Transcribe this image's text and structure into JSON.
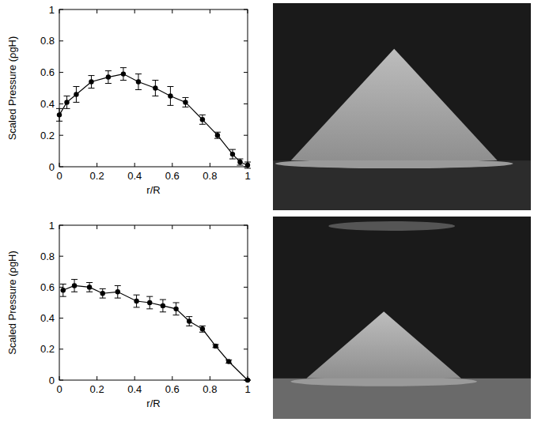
{
  "chart_data": [
    {
      "type": "line",
      "xlabel": "r/R",
      "ylabel": "Scaled Pressure (ρgH)",
      "x": [
        0,
        0.04,
        0.09,
        0.17,
        0.26,
        0.34,
        0.42,
        0.51,
        0.59,
        0.67,
        0.76,
        0.84,
        0.92,
        0.96,
        1.0
      ],
      "series": [
        {
          "color": "#000000",
          "marker": "circle",
          "values": [
            0.33,
            0.41,
            0.46,
            0.54,
            0.57,
            0.59,
            0.54,
            0.5,
            0.45,
            0.41,
            0.3,
            0.2,
            0.08,
            0.03,
            0.01
          ],
          "errors": [
            0.04,
            0.04,
            0.05,
            0.04,
            0.04,
            0.04,
            0.05,
            0.05,
            0.06,
            0.03,
            0.03,
            0.02,
            0.03,
            0.02,
            0.02
          ]
        }
      ],
      "xlim": [
        0,
        1
      ],
      "ylim": [
        0,
        1
      ],
      "xticks": [
        0,
        0.2,
        0.4,
        0.6,
        0.8,
        1
      ],
      "yticks": [
        0,
        0.2,
        0.4,
        0.6,
        0.8,
        1
      ]
    },
    {
      "type": "line",
      "xlabel": "r/R",
      "ylabel": "Scaled Pressure (ρgH)",
      "x": [
        0.02,
        0.08,
        0.16,
        0.23,
        0.31,
        0.41,
        0.48,
        0.55,
        0.62,
        0.69,
        0.76,
        0.83,
        0.9,
        1.0
      ],
      "series": [
        {
          "color": "#000000",
          "marker": "circle",
          "values": [
            0.58,
            0.61,
            0.6,
            0.56,
            0.57,
            0.51,
            0.5,
            0.48,
            0.46,
            0.38,
            0.33,
            0.22,
            0.12,
            0.0
          ],
          "errors": [
            0.04,
            0.04,
            0.03,
            0.03,
            0.04,
            0.04,
            0.04,
            0.04,
            0.04,
            0.03,
            0.02,
            0.01,
            0.01,
            0.0
          ]
        }
      ],
      "xlim": [
        0,
        1
      ],
      "ylim": [
        0,
        1
      ],
      "xticks": [
        0,
        0.2,
        0.4,
        0.6,
        0.8,
        1
      ],
      "yticks": [
        0,
        0.2,
        0.4,
        0.6,
        0.8,
        1
      ]
    }
  ]
}
